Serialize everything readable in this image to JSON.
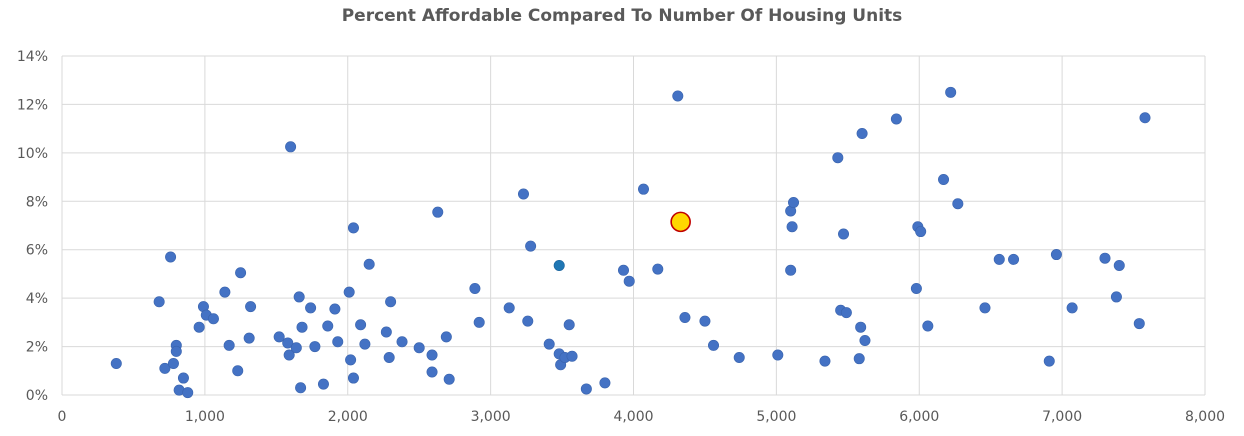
{
  "chart_data": {
    "type": "scatter",
    "title": "Percent Affordable Compared To Number Of Housing Units",
    "xlabel": "",
    "ylabel": "",
    "xlim": [
      0,
      8000
    ],
    "ylim": [
      0,
      0.14
    ],
    "x_ticks": [
      0,
      1000,
      2000,
      3000,
      4000,
      5000,
      6000,
      7000,
      8000
    ],
    "x_tick_labels": [
      "0",
      "1,000",
      "2,000",
      "3,000",
      "4,000",
      "5,000",
      "6,000",
      "7,000",
      "8,000"
    ],
    "y_ticks": [
      0,
      0.02,
      0.04,
      0.06,
      0.08,
      0.1,
      0.12,
      0.14
    ],
    "y_tick_labels": [
      "0%",
      "2%",
      "4%",
      "6%",
      "8%",
      "10%",
      "12%",
      "14%"
    ],
    "grid": true,
    "legend": "none",
    "colors": {
      "points": "#4472C4",
      "highlight_fill": "#FFD700",
      "highlight_stroke": "#C00000",
      "alt_point": "#1F77B4",
      "grid": "#D9D9D9",
      "text": "#595959"
    },
    "series": [
      {
        "points": [
          [
            380,
            0.013
          ],
          [
            680,
            0.0385
          ],
          [
            720,
            0.011
          ],
          [
            760,
            0.057
          ],
          [
            780,
            0.013
          ],
          [
            800,
            0.0205
          ],
          [
            800,
            0.018
          ],
          [
            820,
            0.002
          ],
          [
            850,
            0.007
          ],
          [
            880,
            0.001
          ],
          [
            960,
            0.028
          ],
          [
            990,
            0.0365
          ],
          [
            1010,
            0.033
          ],
          [
            1060,
            0.0315
          ],
          [
            1140,
            0.0425
          ],
          [
            1170,
            0.0205
          ],
          [
            1230,
            0.01
          ],
          [
            1250,
            0.0505
          ],
          [
            1310,
            0.0235
          ],
          [
            1320,
            0.0365
          ],
          [
            1520,
            0.024
          ],
          [
            1580,
            0.0215
          ],
          [
            1590,
            0.0165
          ],
          [
            1600,
            0.1025
          ],
          [
            1640,
            0.0195
          ],
          [
            1660,
            0.0405
          ],
          [
            1670,
            0.003
          ],
          [
            1680,
            0.028
          ],
          [
            1740,
            0.036
          ],
          [
            1770,
            0.02
          ],
          [
            1830,
            0.0045
          ],
          [
            1860,
            0.0285
          ],
          [
            1910,
            0.0355
          ],
          [
            1930,
            0.022
          ],
          [
            2010,
            0.0425
          ],
          [
            2020,
            0.0145
          ],
          [
            2040,
            0.007
          ],
          [
            2040,
            0.069
          ],
          [
            2090,
            0.029
          ],
          [
            2120,
            0.021
          ],
          [
            2150,
            0.054
          ],
          [
            2270,
            0.026
          ],
          [
            2290,
            0.0155
          ],
          [
            2300,
            0.0385
          ],
          [
            2380,
            0.022
          ],
          [
            2500,
            0.0195
          ],
          [
            2590,
            0.0165
          ],
          [
            2590,
            0.0095
          ],
          [
            2630,
            0.0755
          ],
          [
            2690,
            0.024
          ],
          [
            2710,
            0.0065
          ],
          [
            2890,
            0.044
          ],
          [
            2920,
            0.03
          ],
          [
            3130,
            0.036
          ],
          [
            3230,
            0.083
          ],
          [
            3260,
            0.0305
          ],
          [
            3280,
            0.0615
          ],
          [
            3410,
            0.021
          ],
          [
            3480,
            0.017
          ],
          [
            3490,
            0.0125
          ],
          [
            3520,
            0.0155
          ],
          [
            3550,
            0.029
          ],
          [
            3570,
            0.016
          ],
          [
            3670,
            0.0025
          ],
          [
            3800,
            0.005
          ],
          [
            3930,
            0.0515
          ],
          [
            3970,
            0.047
          ],
          [
            4070,
            0.085
          ],
          [
            4170,
            0.052
          ],
          [
            4310,
            0.1235
          ],
          [
            4360,
            0.032
          ],
          [
            4500,
            0.0305
          ],
          [
            4560,
            0.0205
          ],
          [
            4740,
            0.0155
          ],
          [
            5010,
            0.0165
          ],
          [
            5100,
            0.0515
          ],
          [
            5100,
            0.076
          ],
          [
            5110,
            0.0695
          ],
          [
            5120,
            0.0795
          ],
          [
            5340,
            0.014
          ],
          [
            5430,
            0.098
          ],
          [
            5450,
            0.035
          ],
          [
            5470,
            0.0665
          ],
          [
            5490,
            0.034
          ],
          [
            5580,
            0.015
          ],
          [
            5590,
            0.028
          ],
          [
            5600,
            0.108
          ],
          [
            5620,
            0.0225
          ],
          [
            5840,
            0.114
          ],
          [
            5980,
            0.044
          ],
          [
            5990,
            0.0695
          ],
          [
            6010,
            0.0675
          ],
          [
            6060,
            0.0285
          ],
          [
            6170,
            0.089
          ],
          [
            6220,
            0.125
          ],
          [
            6270,
            0.079
          ],
          [
            6460,
            0.036
          ],
          [
            6560,
            0.056
          ],
          [
            6660,
            0.056
          ],
          [
            6910,
            0.014
          ],
          [
            6960,
            0.058
          ],
          [
            7070,
            0.036
          ],
          [
            7300,
            0.0565
          ],
          [
            7380,
            0.0405
          ],
          [
            7400,
            0.0535
          ],
          [
            7540,
            0.0295
          ],
          [
            7580,
            0.1145
          ]
        ]
      },
      {
        "points": [
          [
            3480,
            0.0535
          ]
        ]
      },
      {
        "points": [
          [
            4330,
            0.0715
          ]
        ]
      }
    ]
  }
}
